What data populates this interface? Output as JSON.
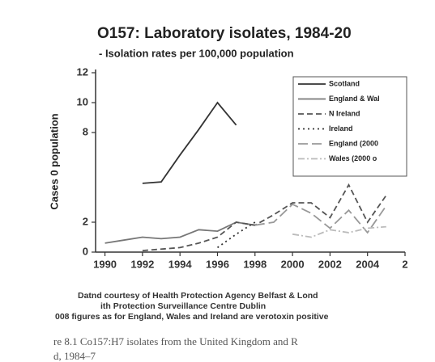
{
  "chart_data": {
    "type": "line",
    "title": "O157: Laboratory isolates, 1984-20",
    "subtitle": "- Isolation rates per 100,000 population",
    "y_label": "Cases 0 population",
    "x": [
      1990,
      1991,
      1992,
      1993,
      1994,
      1995,
      1996,
      1997,
      1998,
      1999,
      2000,
      2001,
      2002,
      2003,
      2004,
      2005
    ],
    "series": [
      {
        "name": "Scotland",
        "color": "#333333",
        "style": "solid",
        "values": [
          null,
          null,
          4.6,
          4.7,
          6.5,
          8.2,
          10,
          8.5,
          null,
          null,
          null,
          null,
          null,
          null,
          null,
          null
        ]
      },
      {
        "name": "England & Wal",
        "color": "#777777",
        "style": "solid",
        "values": [
          0.6,
          0.8,
          1,
          0.9,
          1,
          1.5,
          1.4,
          2,
          1.8,
          null,
          null,
          null,
          null,
          null,
          null,
          null
        ]
      },
      {
        "name": "N Ireland",
        "color": "#555555",
        "style": "dashed",
        "values": [
          null,
          null,
          0.1,
          0.2,
          0.3,
          0.6,
          1,
          2,
          1.8,
          2.5,
          3.3,
          3.3,
          2.3,
          4.5,
          2,
          3.8
        ]
      },
      {
        "name": "Ireland",
        "color": "#333333",
        "style": "dotted",
        "values": [
          null,
          null,
          null,
          null,
          null,
          null,
          0.3,
          1.2,
          2,
          null,
          null,
          null,
          null,
          null,
          null,
          null
        ]
      },
      {
        "name": "England (2000",
        "color": "#999999",
        "style": "longdash",
        "values": [
          null,
          null,
          null,
          null,
          null,
          null,
          null,
          null,
          1.8,
          2,
          3.2,
          2.6,
          1.6,
          2.8,
          1.3,
          3.1
        ]
      },
      {
        "name": "Wales (2000 o",
        "color": "#bbbbbb",
        "style": "dashdot",
        "values": [
          null,
          null,
          null,
          null,
          null,
          null,
          null,
          null,
          null,
          null,
          1.2,
          1,
          1.5,
          1.3,
          1.6,
          1.7
        ]
      }
    ],
    "xlim": [
      1989.5,
      2006
    ],
    "ylim": [
      0,
      12
    ],
    "xticks": [
      1990,
      1992,
      1994,
      1996,
      1998,
      2000,
      2002,
      2004,
      {
        "value": 2006,
        "label": "2"
      }
    ],
    "yticks": [
      0,
      2,
      8,
      10,
      12
    ],
    "legend": "upper right",
    "source_notes": [
      "Datnd courtesy of Health Protection Agency Belfast & Lond",
      "ith Protection Surveillance Centre Dublin",
      "008 figures as for England, Wales and Ireland are verotoxin positive"
    ],
    "caption": [
      "re 8.1  Co157:H7 isolates from the United Kingdom and R",
      "d, 1984–7"
    ]
  }
}
